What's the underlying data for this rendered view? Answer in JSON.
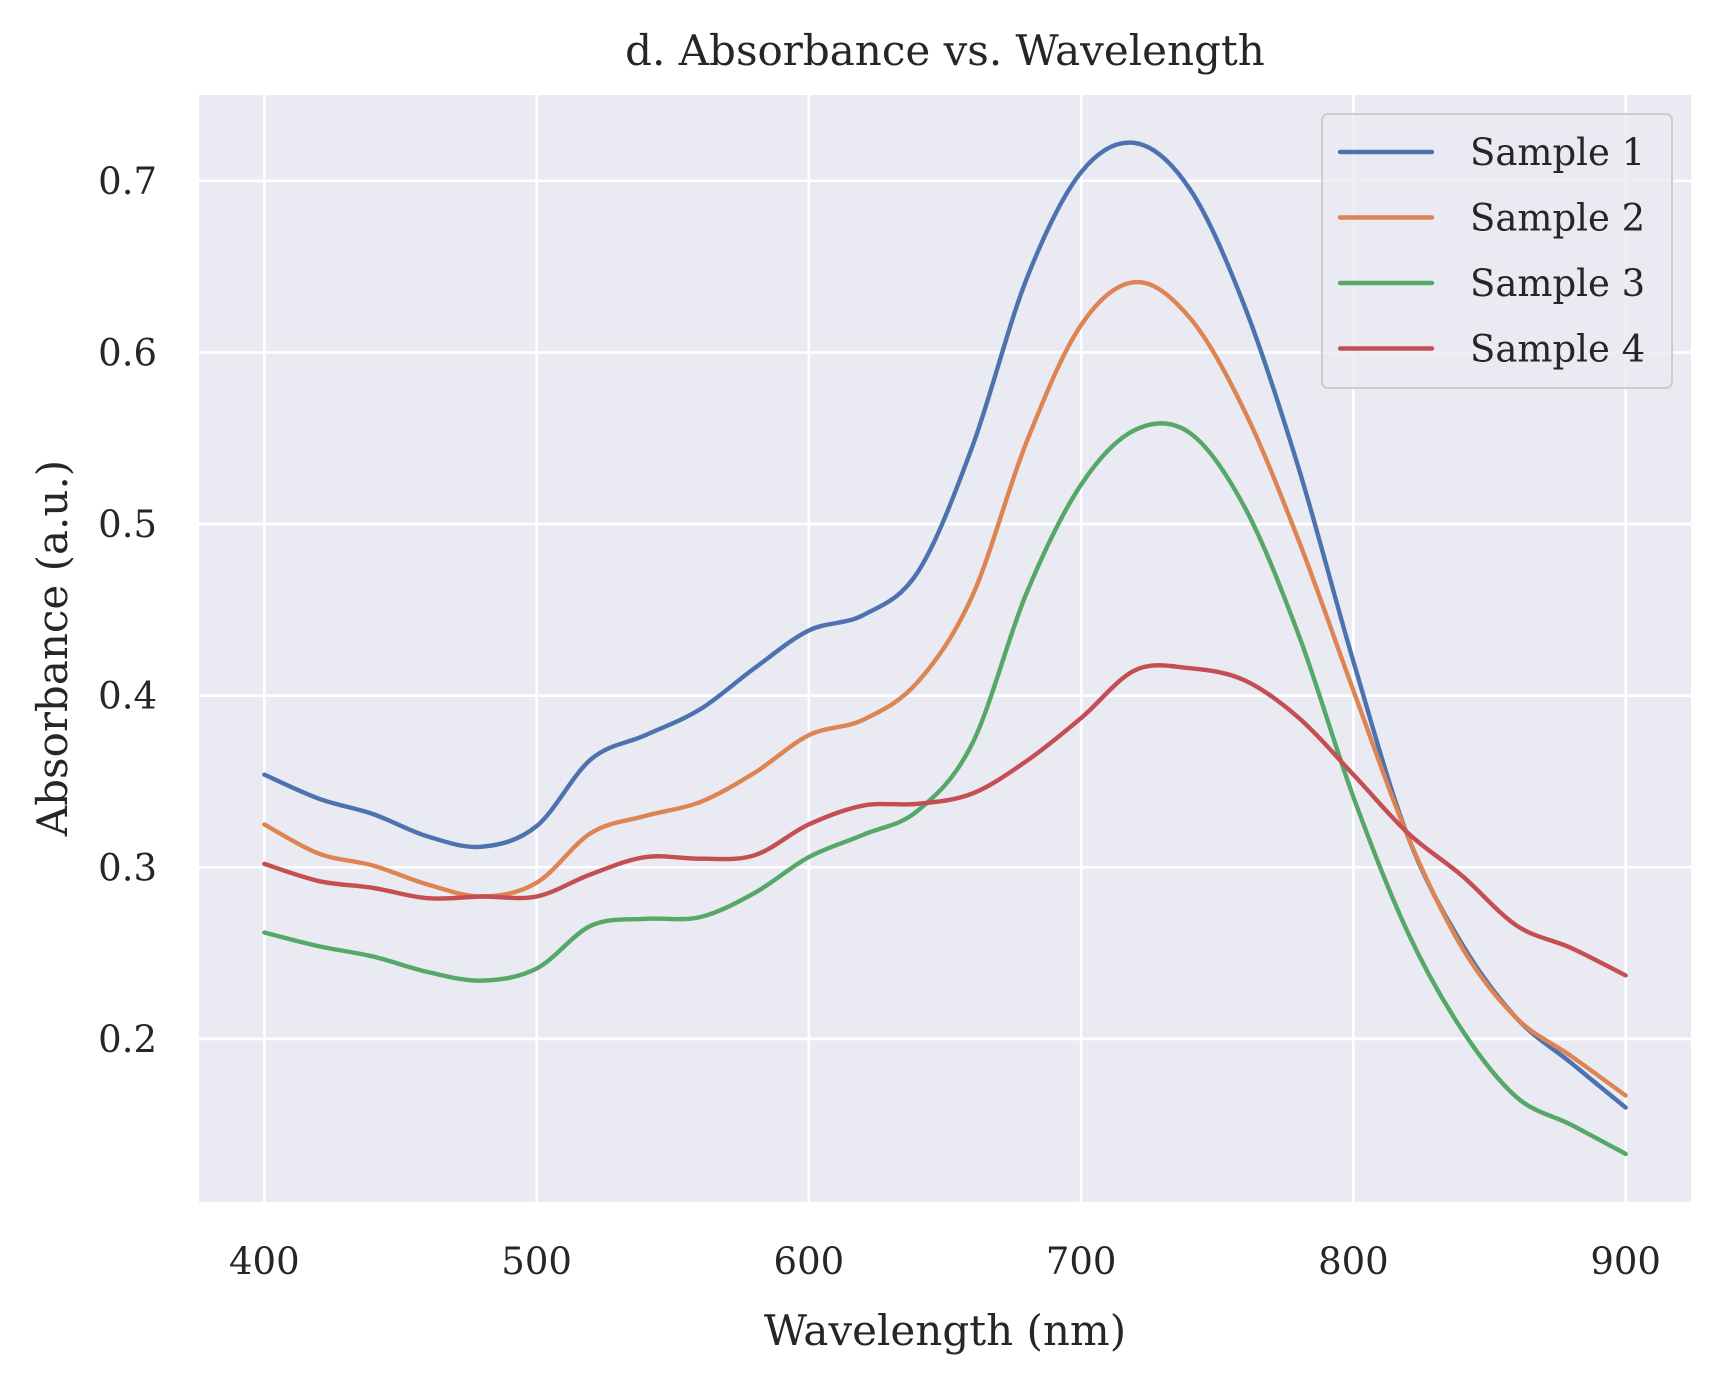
{
  "chart_data": {
    "type": "line",
    "title": "d. Absorbance vs. Wavelength",
    "xlabel": "Wavelength (nm)",
    "ylabel": "Absorbance (a.u.)",
    "xlim": [
      376,
      924
    ],
    "ylim": [
      0.105,
      0.75
    ],
    "xticks": [
      400,
      500,
      600,
      700,
      800,
      900
    ],
    "xtick_labels": [
      "400",
      "500",
      "600",
      "700",
      "800",
      "900"
    ],
    "yticks": [
      0.2,
      0.3,
      0.4,
      0.5,
      0.6,
      0.7
    ],
    "ytick_labels": [
      "0.2",
      "0.3",
      "0.4",
      "0.5",
      "0.6",
      "0.7"
    ],
    "grid": true,
    "legend_position": "top-right",
    "background": "#eaeaf2",
    "x": [
      400,
      420,
      440,
      460,
      480,
      500,
      520,
      540,
      560,
      580,
      600,
      620,
      640,
      660,
      680,
      700,
      720,
      740,
      760,
      780,
      800,
      820,
      840,
      860,
      880,
      900
    ],
    "series": [
      {
        "name": "Sample 1",
        "color": "#4c72b0",
        "values": [
          0.354,
          0.34,
          0.331,
          0.318,
          0.312,
          0.324,
          0.363,
          0.377,
          0.392,
          0.416,
          0.438,
          0.447,
          0.472,
          0.545,
          0.643,
          0.705,
          0.722,
          0.695,
          0.627,
          0.532,
          0.42,
          0.318,
          0.255,
          0.212,
          0.186,
          0.16
        ]
      },
      {
        "name": "Sample 2",
        "color": "#dd8452",
        "values": [
          0.325,
          0.308,
          0.301,
          0.29,
          0.283,
          0.291,
          0.32,
          0.33,
          0.338,
          0.355,
          0.377,
          0.386,
          0.408,
          0.458,
          0.548,
          0.616,
          0.641,
          0.62,
          0.566,
          0.49,
          0.403,
          0.318,
          0.253,
          0.212,
          0.19,
          0.167
        ]
      },
      {
        "name": "Sample 3",
        "color": "#55a868",
        "values": [
          0.262,
          0.254,
          0.248,
          0.239,
          0.234,
          0.241,
          0.266,
          0.27,
          0.271,
          0.285,
          0.306,
          0.319,
          0.333,
          0.372,
          0.46,
          0.523,
          0.555,
          0.553,
          0.51,
          0.435,
          0.341,
          0.262,
          0.205,
          0.166,
          0.15,
          0.133
        ]
      },
      {
        "name": "Sample 4",
        "color": "#c44e52",
        "values": [
          0.302,
          0.292,
          0.288,
          0.282,
          0.283,
          0.283,
          0.296,
          0.306,
          0.305,
          0.307,
          0.325,
          0.336,
          0.337,
          0.343,
          0.362,
          0.387,
          0.415,
          0.416,
          0.409,
          0.387,
          0.354,
          0.32,
          0.295,
          0.266,
          0.253,
          0.237
        ]
      }
    ]
  }
}
